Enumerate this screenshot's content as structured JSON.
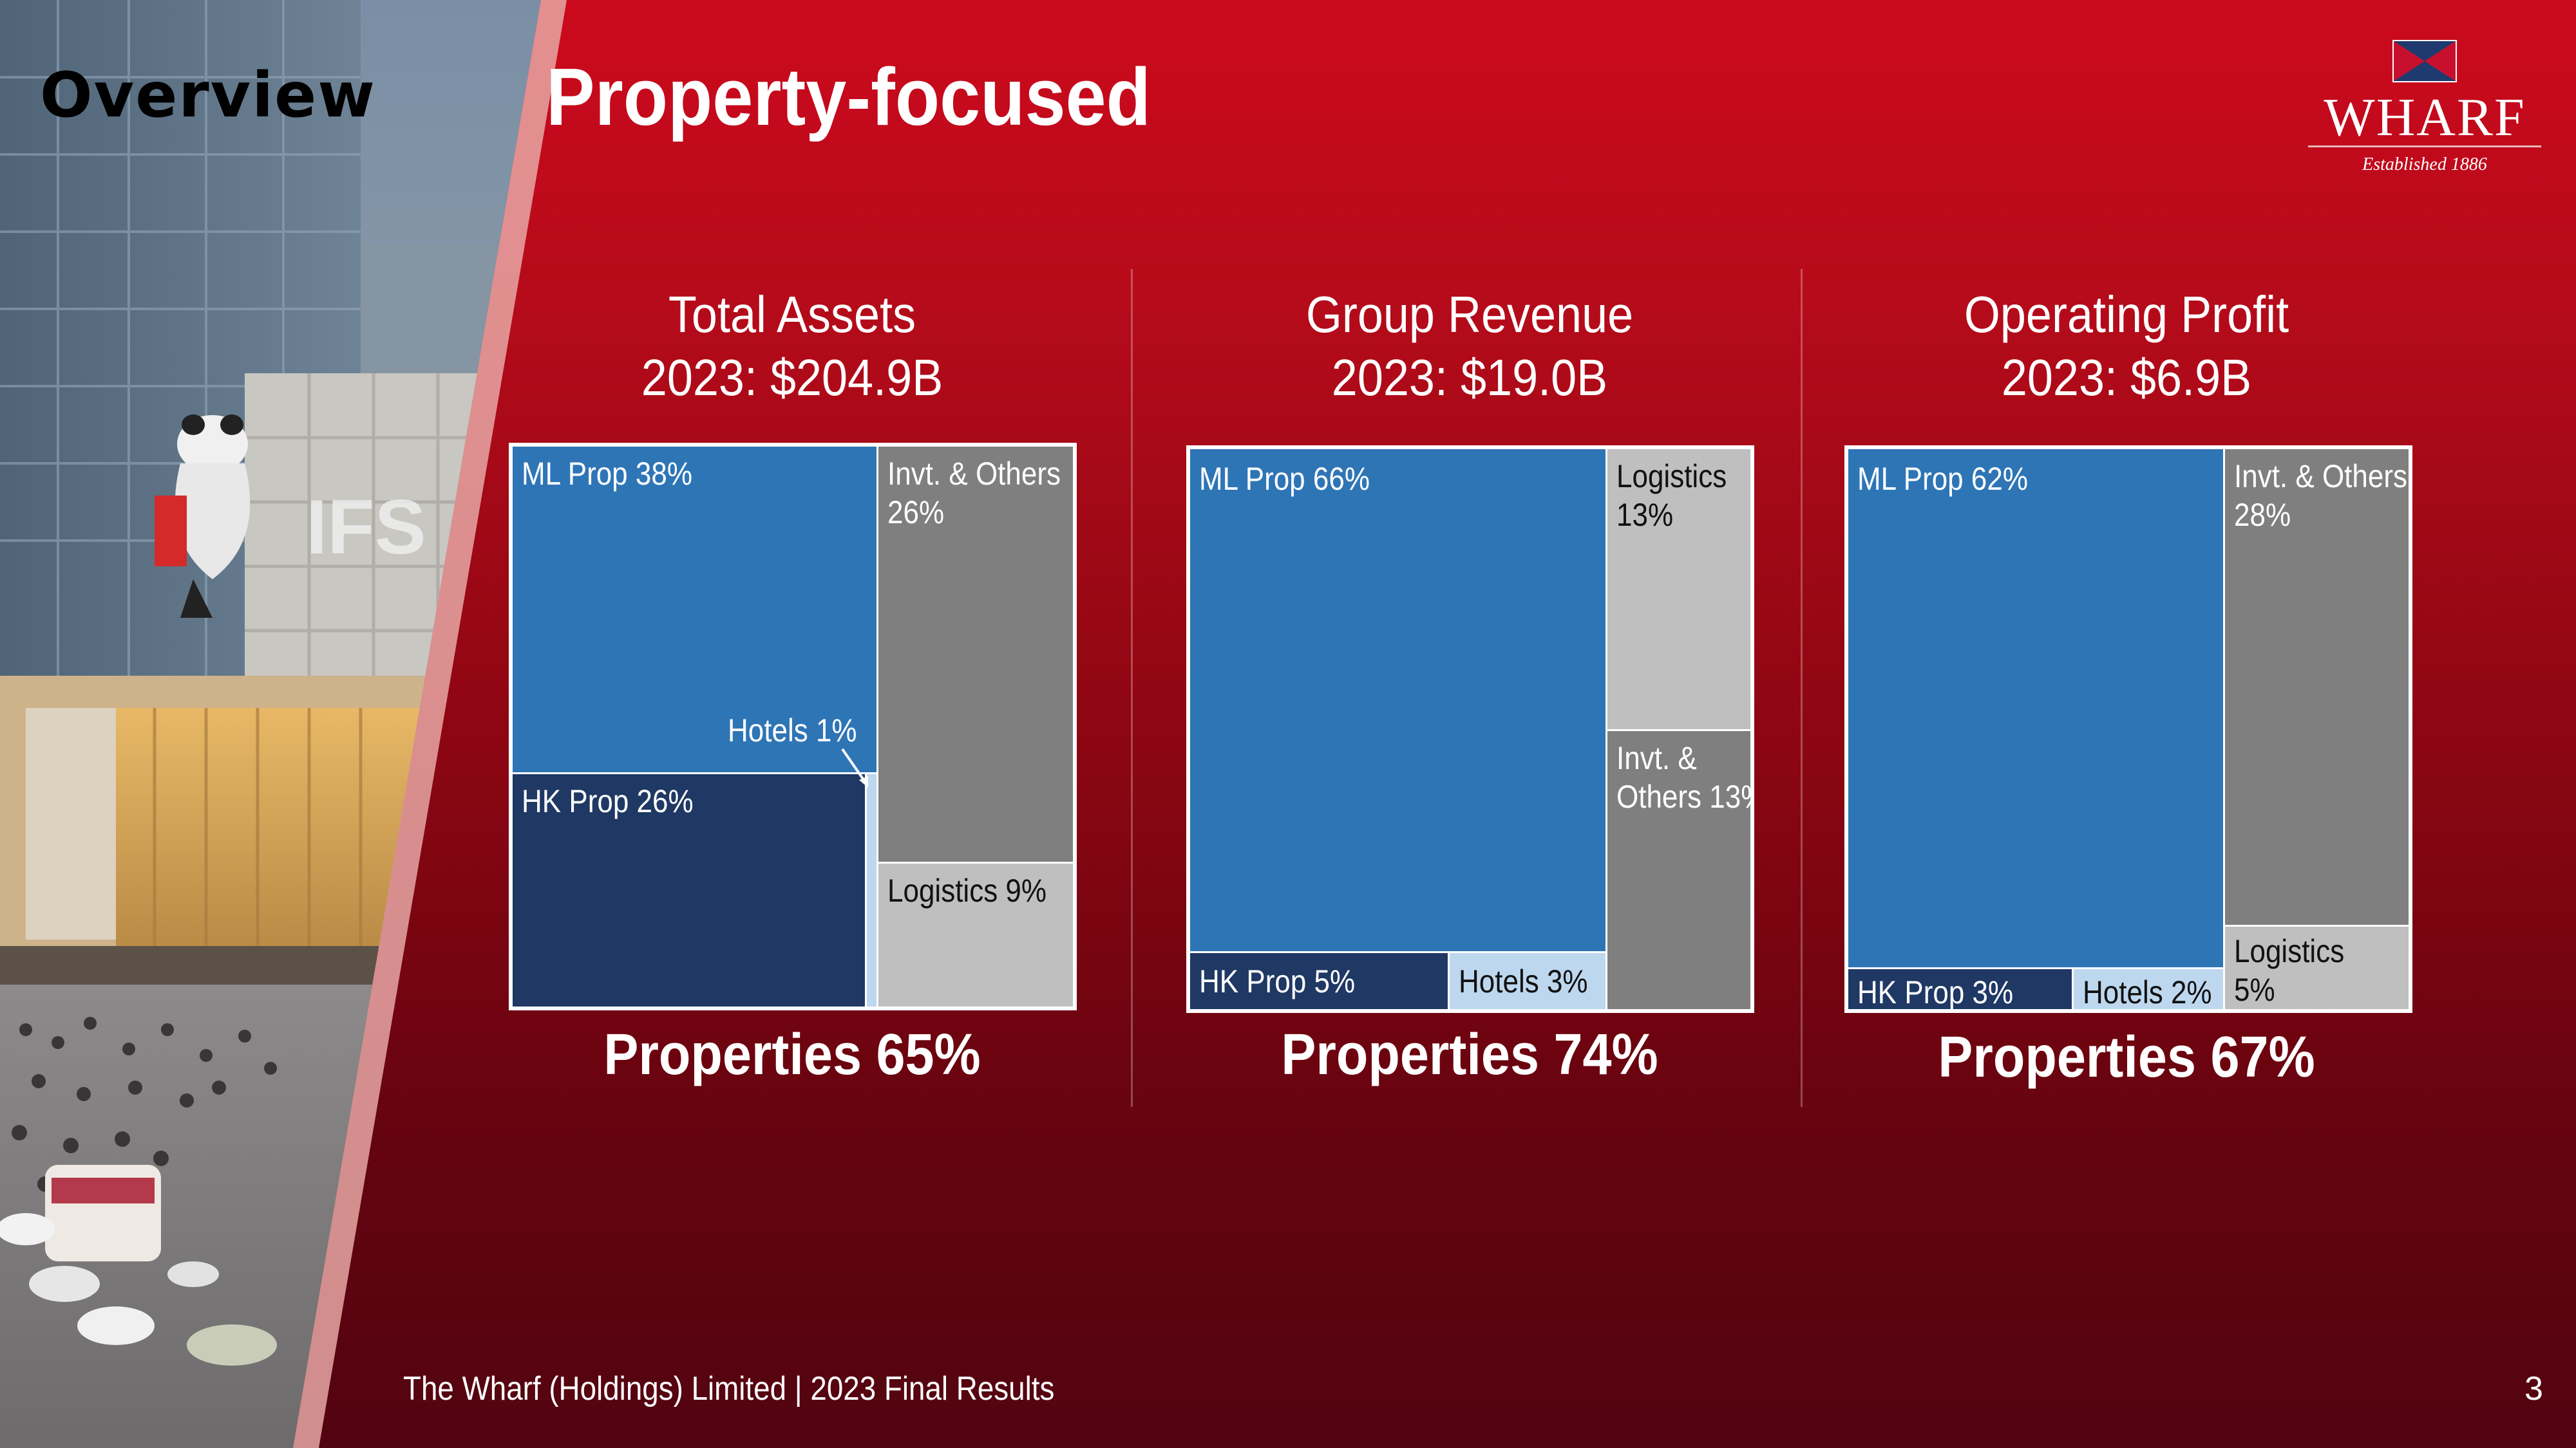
{
  "slide": {
    "section": "Overview",
    "title": "Property-focused",
    "logo": {
      "name": "WHARF",
      "tagline": "Established 1886"
    },
    "footer": "The Wharf (Holdings) Limited | 2023 Final Results",
    "page_number": "3"
  },
  "colors": {
    "ml_prop": "#2e75b6",
    "hk_prop": "#1f3864",
    "hotels": "#bdd7ee",
    "invt_others": "#7f7f7f",
    "logistics": "#bfbfbf"
  },
  "panels": [
    {
      "title": "Total Assets",
      "subtitle": "2023: $204.9B",
      "summary": "Properties 65%",
      "segments": {
        "ml_prop": "ML Prop 38%",
        "hk_prop": "HK Prop 26%",
        "hotels": "Hotels 1%",
        "invt_others": "Invt. & Others\n26%",
        "logistics": "Logistics 9%"
      }
    },
    {
      "title": "Group Revenue",
      "subtitle": "2023: $19.0B",
      "summary": "Properties 74%",
      "segments": {
        "ml_prop": "ML Prop 66%",
        "hk_prop": "HK Prop 5%",
        "hotels": "Hotels 3%",
        "logistics": "Logistics\n13%",
        "invt_others": "Invt. &\nOthers 13%"
      }
    },
    {
      "title": "Operating Profit",
      "subtitle": "2023: $6.9B",
      "summary": "Properties 67%",
      "segments": {
        "ml_prop": "ML Prop 62%",
        "hk_prop": "HK Prop 3%",
        "hotels": "Hotels 2%",
        "invt_others": "Invt. & Others\n28%",
        "logistics": "Logistics\n5%"
      }
    }
  ]
}
